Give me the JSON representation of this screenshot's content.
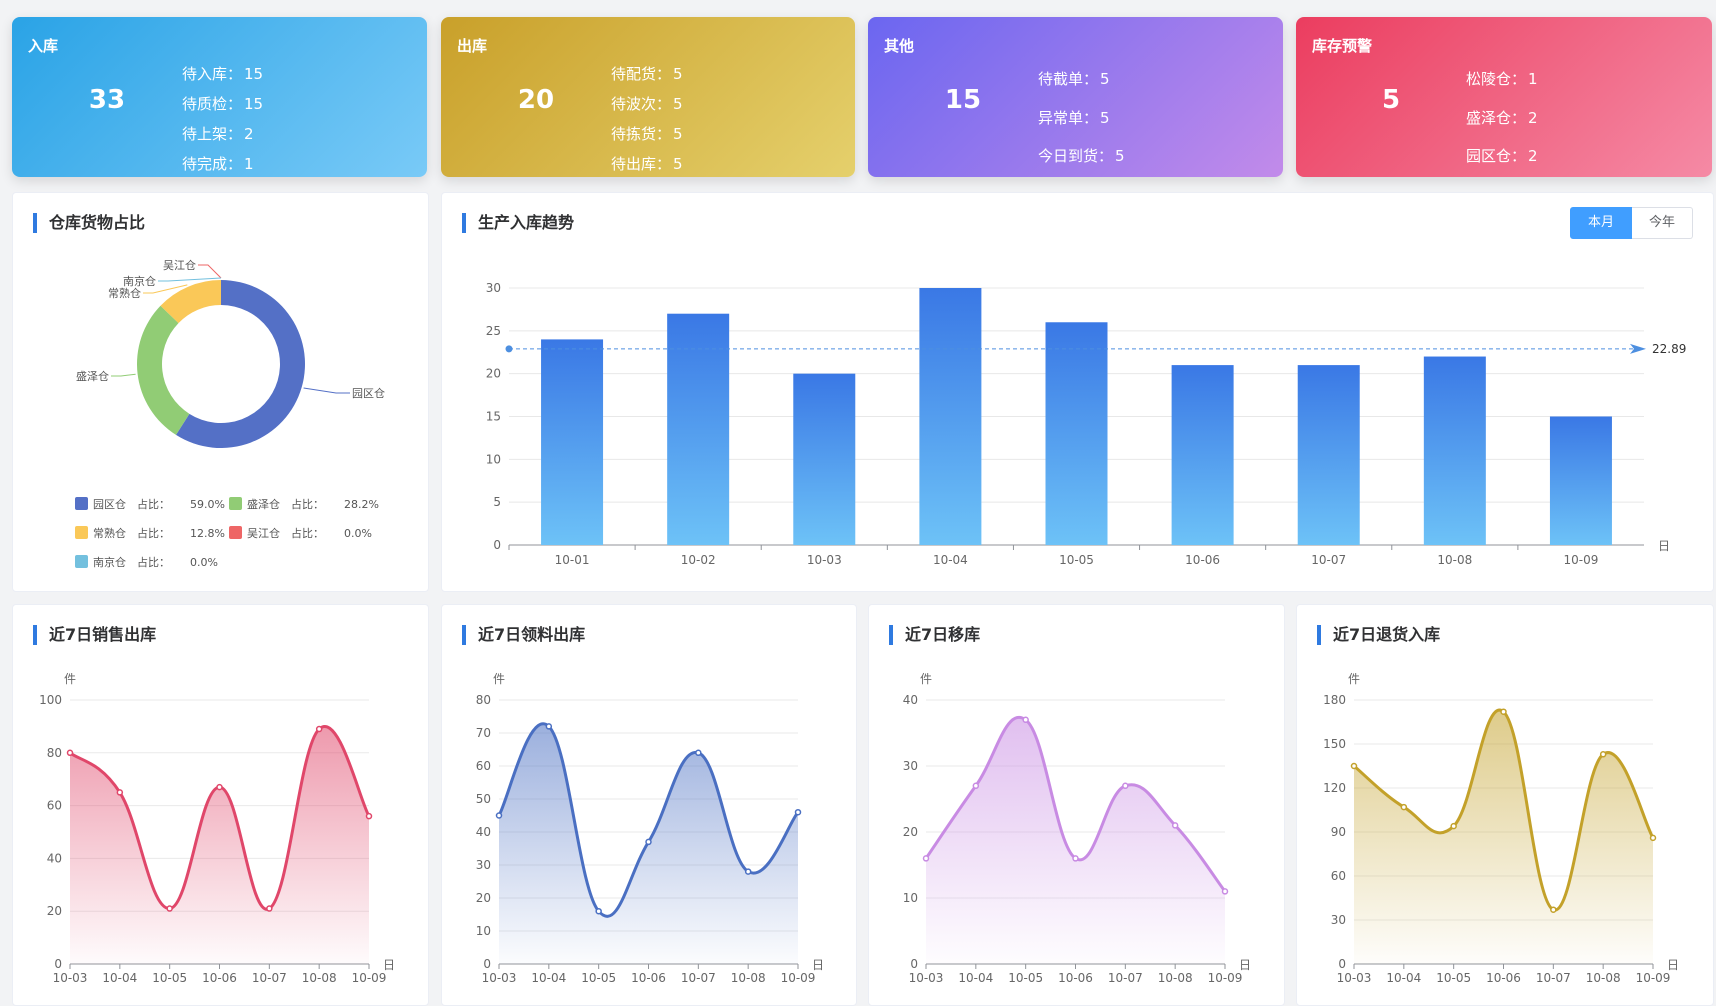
{
  "cards": [
    {
      "title": "入库",
      "value": "33",
      "color": "#2aa3e6",
      "items": [
        {
          "label": "待入库：",
          "value": "15"
        },
        {
          "label": "待质检：",
          "value": "15"
        },
        {
          "label": "待上架：",
          "value": "2"
        },
        {
          "label": "待完成：",
          "value": "1"
        }
      ]
    },
    {
      "title": "出库",
      "value": "20",
      "color": "#c9a02a",
      "items": [
        {
          "label": "待配货：",
          "value": "5"
        },
        {
          "label": "待波次：",
          "value": "5"
        },
        {
          "label": "待拣货：",
          "value": "5"
        },
        {
          "label": "待出库：",
          "value": "5"
        }
      ]
    },
    {
      "title": "其他",
      "value": "15",
      "color": "#6b66f0",
      "items": [
        {
          "label": "待截单：",
          "value": "5"
        },
        {
          "label": "异常单：",
          "value": "5"
        },
        {
          "label": "今日到货：",
          "value": "5"
        }
      ]
    },
    {
      "title": "库存预警",
      "value": "5",
      "color": "#eb3d5f",
      "items": [
        {
          "label": "松陵仓：",
          "value": "1"
        },
        {
          "label": "盛泽仓：",
          "value": "2"
        },
        {
          "label": "园区仓：",
          "value": "2"
        }
      ]
    }
  ],
  "donut": {
    "title": "仓库货物占比",
    "ratio_label": "占比：",
    "chart_data": {
      "type": "pie",
      "slices": [
        {
          "name": "园区仓",
          "value": 59.0,
          "pct": "59.0%",
          "color": "#5470c6"
        },
        {
          "name": "盛泽仓",
          "value": 28.2,
          "pct": "28.2%",
          "color": "#91cc75"
        },
        {
          "name": "常熟仓",
          "value": 12.8,
          "pct": "12.8%",
          "color": "#fac858"
        },
        {
          "name": "吴江仓",
          "value": 0.0,
          "pct": "0.0%",
          "color": "#ee6666"
        },
        {
          "name": "南京仓",
          "value": 0.0,
          "pct": "0.0%",
          "color": "#73c0de"
        }
      ]
    }
  },
  "trend": {
    "title": "生产入库趋势",
    "tabs": [
      "本月",
      "今年"
    ],
    "chart_data": {
      "type": "bar",
      "categories": [
        "10-01",
        "10-02",
        "10-03",
        "10-04",
        "10-05",
        "10-06",
        "10-07",
        "10-08",
        "10-09"
      ],
      "values": [
        24,
        27,
        20,
        30,
        26,
        21,
        21,
        22,
        15
      ],
      "ylim": [
        0,
        30
      ],
      "yticks": [
        0,
        5,
        10,
        15,
        20,
        25,
        30
      ],
      "xunit": "日",
      "mean_line": 22.89,
      "mean_label": "22.89",
      "color": "#2f7ae0"
    }
  },
  "small_charts": [
    {
      "title": "近7日销售出库",
      "chart_data": {
        "type": "area",
        "ylabel": "件",
        "xunit": "日",
        "x": [
          "10-03",
          "10-04",
          "10-05",
          "10-06",
          "10-07",
          "10-08",
          "10-09"
        ],
        "values": [
          80,
          65,
          21,
          67,
          21,
          89,
          56
        ],
        "ylim": [
          0,
          100
        ],
        "yticks": [
          0,
          20,
          40,
          60,
          80,
          100
        ],
        "color": "#e0476a"
      }
    },
    {
      "title": "近7日领料出库",
      "chart_data": {
        "type": "area",
        "ylabel": "件",
        "xunit": "日",
        "x": [
          "10-03",
          "10-04",
          "10-05",
          "10-06",
          "10-07",
          "10-08",
          "10-09"
        ],
        "values": [
          45,
          72,
          16,
          37,
          64,
          28,
          46
        ],
        "ylim": [
          0,
          80
        ],
        "yticks": [
          0,
          10,
          20,
          30,
          40,
          50,
          60,
          70,
          80
        ],
        "color": "#4a6fc2"
      }
    },
    {
      "title": "近7日移库",
      "chart_data": {
        "type": "area",
        "ylabel": "件",
        "xunit": "日",
        "x": [
          "10-03",
          "10-04",
          "10-05",
          "10-06",
          "10-07",
          "10-08",
          "10-09"
        ],
        "values": [
          16,
          27,
          37,
          16,
          27,
          21,
          11
        ],
        "ylim": [
          0,
          40
        ],
        "yticks": [
          0,
          10,
          20,
          30,
          40
        ],
        "color": "#c88be3"
      }
    },
    {
      "title": "近7日退货入库",
      "chart_data": {
        "type": "area",
        "ylabel": "件",
        "xunit": "日",
        "x": [
          "10-03",
          "10-04",
          "10-05",
          "10-06",
          "10-07",
          "10-08",
          "10-09"
        ],
        "values": [
          135,
          107,
          94,
          172,
          37,
          143,
          86
        ],
        "ylim": [
          0,
          180
        ],
        "yticks": [
          0,
          30,
          60,
          90,
          120,
          150,
          180
        ],
        "color": "#c3a12a"
      }
    }
  ]
}
